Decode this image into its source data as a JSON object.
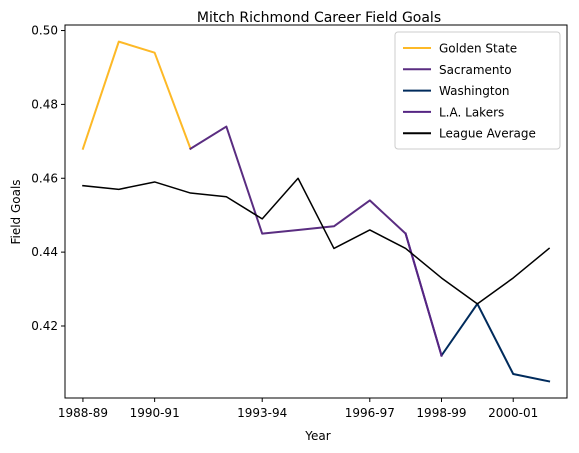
{
  "chart_data": {
    "type": "line",
    "title": "Mitch Richmond Career Field Goals",
    "xlabel": "Year",
    "ylabel": "Field Goals",
    "x_ticks": [
      "1988-89",
      "1990-91",
      "1993-94",
      "1996-97",
      "1998-99",
      "2000-01"
    ],
    "y_ticks": [
      "0.42",
      "0.44",
      "0.46",
      "0.48",
      "0.50"
    ],
    "ylim": [
      0.4005,
      0.5015
    ],
    "grid": false,
    "legend_position": "top-right",
    "seasons": [
      "1988-89",
      "1989-90",
      "1990-91",
      "1991-92",
      "1992-93",
      "1993-94",
      "1994-95",
      "1995-96",
      "1996-97",
      "1997-98",
      "1998-99",
      "1999-00",
      "2000-01",
      "2001-02"
    ],
    "series": [
      {
        "name": "Golden State",
        "color": "#fdb927",
        "x": [
          "1988-89",
          "1989-90",
          "1990-91",
          "1991-92"
        ],
        "values": [
          0.468,
          0.497,
          0.494,
          0.468
        ]
      },
      {
        "name": "Sacramento",
        "color": "#5a2d81",
        "x": [
          "1991-92",
          "1992-93",
          "1993-94",
          "1994-95",
          "1995-96",
          "1996-97",
          "1997-98",
          "1998-99"
        ],
        "values": [
          0.468,
          0.474,
          0.445,
          0.446,
          0.447,
          0.454,
          0.445,
          0.412
        ]
      },
      {
        "name": "Washington",
        "color": "#002b5c",
        "x": [
          "1998-99",
          "1999-00",
          "2000-01",
          "2001-02"
        ],
        "values": [
          0.412,
          0.426,
          0.407,
          0.405
        ]
      },
      {
        "name": "L.A. Lakers",
        "color": "#552583",
        "x": [
          "1997-98",
          "1998-99"
        ],
        "values": [
          0.445,
          0.412
        ]
      },
      {
        "name": "League Average",
        "color": "#000000",
        "x": [
          "1988-89",
          "1989-90",
          "1990-91",
          "1991-92",
          "1992-93",
          "1993-94",
          "1994-95",
          "1995-96",
          "1996-97",
          "1997-98",
          "1998-99",
          "1999-00",
          "2000-01",
          "2001-02"
        ],
        "values": [
          0.458,
          0.457,
          0.459,
          0.456,
          0.455,
          0.449,
          0.46,
          0.441,
          0.446,
          0.441,
          0.433,
          0.426,
          0.433,
          0.441
        ]
      }
    ]
  }
}
